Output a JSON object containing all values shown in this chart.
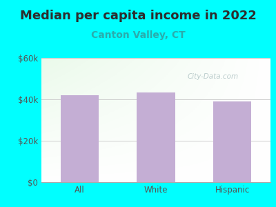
{
  "title": "Median per capita income in 2022",
  "subtitle": "Canton Valley, CT",
  "categories": [
    "All",
    "White",
    "Hispanic"
  ],
  "values": [
    42000,
    43500,
    39000
  ],
  "bar_color": "#c4aed4",
  "title_fontsize": 13,
  "subtitle_fontsize": 10,
  "subtitle_color": "#2aacac",
  "title_color": "#2d2d2d",
  "tick_color": "#555555",
  "background_outer": "#00FFFF",
  "ylim": [
    0,
    60000
  ],
  "yticks": [
    0,
    20000,
    40000,
    60000
  ],
  "ytick_labels": [
    "$0",
    "$20k",
    "$40k",
    "$60k"
  ],
  "watermark": "City-Data.com",
  "grid_color": "#cccccc"
}
